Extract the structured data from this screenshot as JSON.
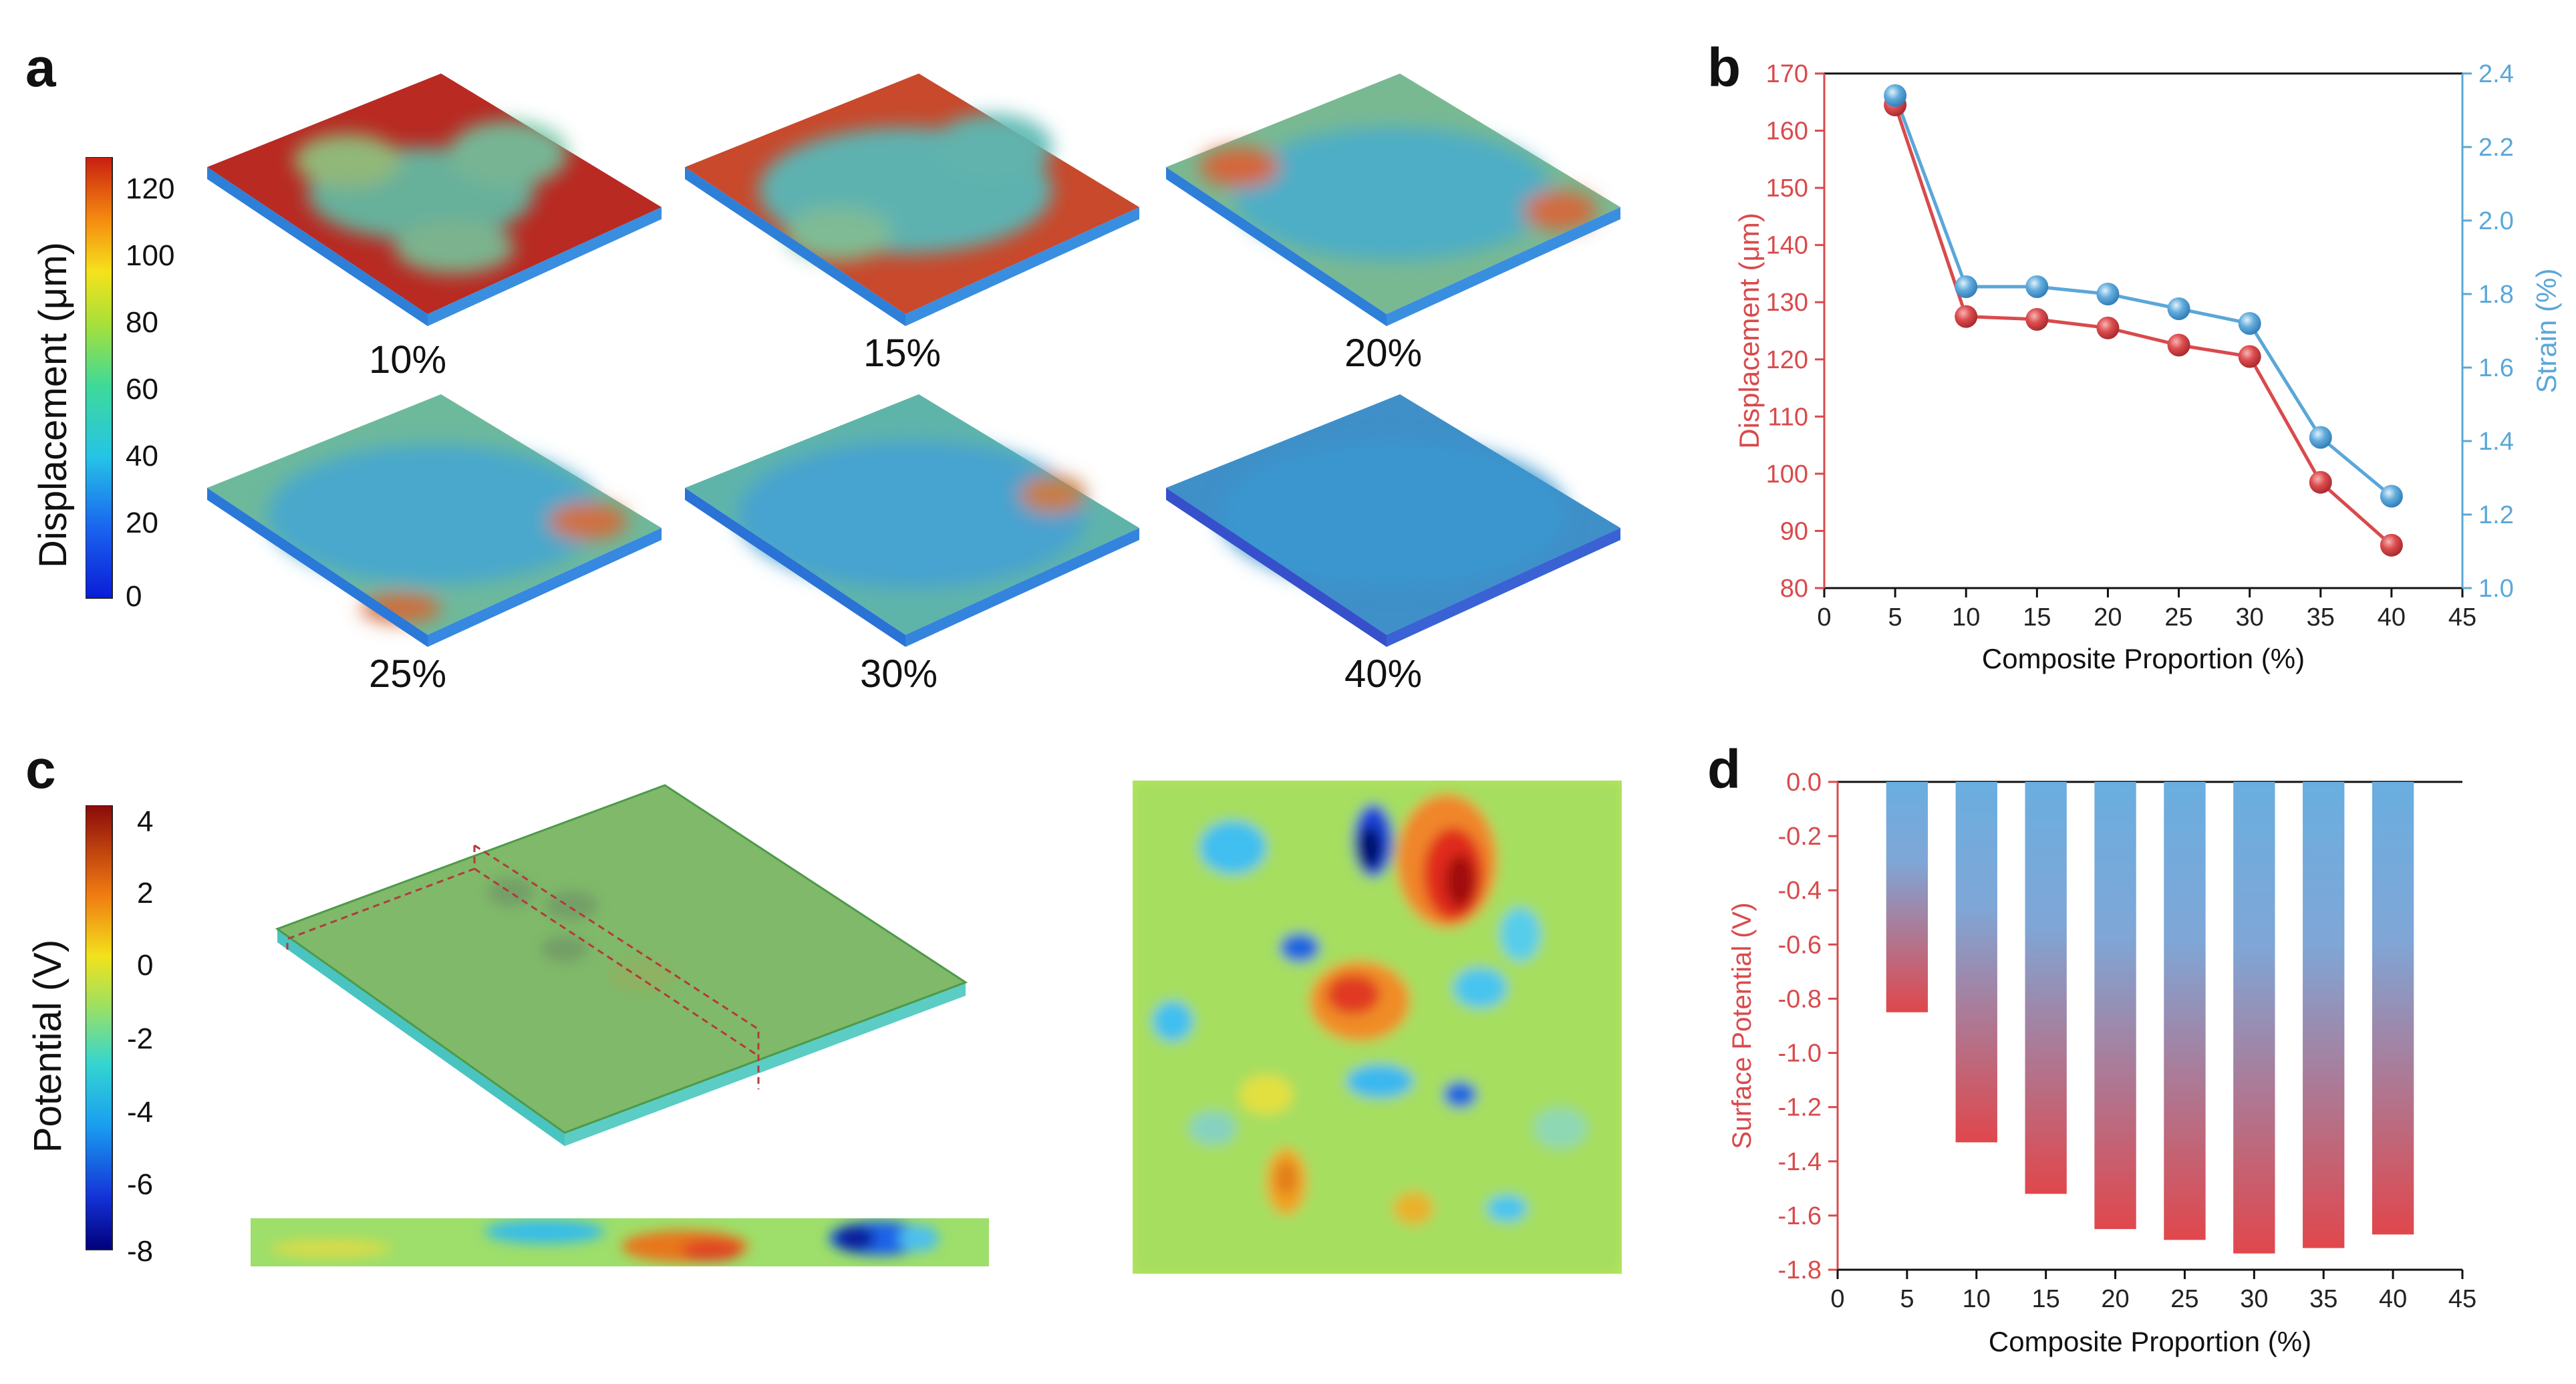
{
  "panels": {
    "a": {
      "letter": "a",
      "colorbar": {
        "title": "Displacement (μm)",
        "ticks": [
          "120",
          "100",
          "80",
          "60",
          "40",
          "20",
          "0"
        ]
      },
      "labels": [
        "10%",
        "15%",
        "20%",
        "25%",
        "30%",
        "40%"
      ]
    },
    "b": {
      "letter": "b"
    },
    "c": {
      "letter": "c",
      "colorbar": {
        "title": "Potential (V)",
        "ticks": [
          "4",
          "2",
          "0",
          "-2",
          "-4",
          "-6",
          "-8"
        ]
      }
    },
    "d": {
      "letter": "d"
    }
  },
  "colors": {
    "red": "#d94a4c",
    "blue": "#5aa7d8",
    "bar_top": "#6aaee0",
    "bar_bottom": "#e0474c"
  },
  "chart_data": [
    {
      "id": "b",
      "type": "line",
      "x": [
        5,
        10,
        15,
        20,
        25,
        30,
        35,
        40
      ],
      "series": [
        {
          "name": "Displacement (μm)",
          "axis": "left",
          "color": "#d94a4c",
          "values": [
            164.5,
            127.5,
            127.0,
            125.5,
            122.5,
            120.5,
            98.5,
            87.5
          ]
        },
        {
          "name": "Strain (%)",
          "axis": "right",
          "color": "#5aa7d8",
          "values": [
            2.34,
            1.82,
            1.82,
            1.8,
            1.76,
            1.72,
            1.41,
            1.25
          ]
        }
      ],
      "xlabel": "Composite Proportion (%)",
      "ylabel_left": "Displacement (μm)",
      "ylabel_right": "Strain (%)",
      "xlim": [
        0,
        45
      ],
      "xticks": [
        "0",
        "5",
        "10",
        "15",
        "20",
        "25",
        "30",
        "35",
        "40",
        "45"
      ],
      "ylim_left": [
        80,
        170
      ],
      "yticks_left": [
        "80",
        "90",
        "100",
        "110",
        "120",
        "130",
        "140",
        "150",
        "160",
        "170"
      ],
      "ylim_right": [
        1.0,
        2.4
      ],
      "yticks_right": [
        "1.0",
        "1.2",
        "1.4",
        "1.6",
        "1.8",
        "2.0",
        "2.2",
        "2.4"
      ]
    },
    {
      "id": "d",
      "type": "bar",
      "x": [
        5,
        10,
        15,
        20,
        25,
        30,
        35,
        40
      ],
      "values": [
        -0.85,
        -1.33,
        -1.52,
        -1.65,
        -1.69,
        -1.74,
        -1.72,
        -1.67
      ],
      "xlabel": "Composite Proportion (%)",
      "ylabel": "Surface Potential (V)",
      "xlim": [
        0,
        45
      ],
      "xticks": [
        "0",
        "5",
        "10",
        "15",
        "20",
        "25",
        "30",
        "35",
        "40",
        "45"
      ],
      "ylim": [
        -1.8,
        0.0
      ],
      "yticks": [
        "0.0",
        "-0.2",
        "-0.4",
        "-0.6",
        "-0.8",
        "-1.0",
        "-1.2",
        "-1.4",
        "-1.6",
        "-1.8"
      ]
    }
  ]
}
